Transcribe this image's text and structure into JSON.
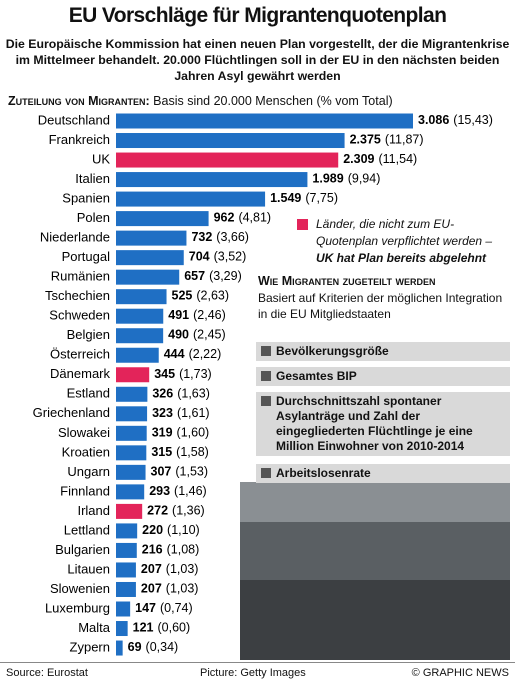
{
  "header": {
    "title": "EU Vorschläge für Migrantenquotenplan",
    "subtitle": "Die Europäische Kommission hat einen neuen Plan vorgestellt, der die Migrantenkrise im Mittelmeer behandelt. 20.000 Flüchtlingen soll in der EU in den nächsten beiden Jahren Asyl gewährt werden"
  },
  "chart_data": {
    "type": "bar",
    "orientation": "horizontal",
    "subheading_bold": "Zuteilung von Migranten:",
    "subheading": "Basis sind 20.000 Menschen (% vom Total)",
    "categories": [
      "Deutschland",
      "Frankreich",
      "UK",
      "Italien",
      "Spanien",
      "Polen",
      "Niederlande",
      "Portugal",
      "Rumänien",
      "Tschechien",
      "Schweden",
      "Belgien",
      "Österreich",
      "Dänemark",
      "Estland",
      "Griechenland",
      "Slowakei",
      "Kroatien",
      "Ungarn",
      "Finnland",
      "Irland",
      "Lettland",
      "Bulgarien",
      "Litauen",
      "Slowenien",
      "Luxemburg",
      "Malta",
      "Zypern"
    ],
    "values": [
      3086,
      2375,
      2309,
      1989,
      1549,
      962,
      732,
      704,
      657,
      525,
      491,
      490,
      444,
      345,
      326,
      323,
      319,
      315,
      307,
      293,
      272,
      220,
      216,
      207,
      207,
      147,
      121,
      69
    ],
    "value_labels": [
      "3.086",
      "2.375",
      "2.309",
      "1.989",
      "1.549",
      "962",
      "732",
      "704",
      "657",
      "525",
      "491",
      "490",
      "444",
      "345",
      "326",
      "323",
      "319",
      "315",
      "307",
      "293",
      "272",
      "220",
      "216",
      "207",
      "207",
      "147",
      "121",
      "69"
    ],
    "share_labels": [
      "(15,43)",
      "(11,87)",
      "(11,54)",
      "(9,94)",
      "(7,75)",
      "(4,81)",
      "(3,66)",
      "(3,52)",
      "(3,29)",
      "(2,63)",
      "(2,46)",
      "(2,45)",
      "(2,22)",
      "(1,73)",
      "(1,63)",
      "(1,61)",
      "(1,60)",
      "(1,58)",
      "(1,53)",
      "(1,46)",
      "(1,36)",
      "(1,10)",
      "(1,08)",
      "(1,03)",
      "(1,03)",
      "(0,74)",
      "(0,60)",
      "(0,34)"
    ],
    "colors": [
      "#1f6fc4",
      "#1f6fc4",
      "#e3245a",
      "#1f6fc4",
      "#1f6fc4",
      "#1f6fc4",
      "#1f6fc4",
      "#1f6fc4",
      "#1f6fc4",
      "#1f6fc4",
      "#1f6fc4",
      "#1f6fc4",
      "#1f6fc4",
      "#e3245a",
      "#1f6fc4",
      "#1f6fc4",
      "#1f6fc4",
      "#1f6fc4",
      "#1f6fc4",
      "#1f6fc4",
      "#e3245a",
      "#1f6fc4",
      "#1f6fc4",
      "#1f6fc4",
      "#1f6fc4",
      "#1f6fc4",
      "#1f6fc4",
      "#1f6fc4"
    ],
    "legend_note": "Länder, die nicht zum EU-Quotenplan verpflichtet werden – ",
    "legend_note_bold": "UK hat Plan bereits abgelehnt"
  },
  "criteria": {
    "title": "Wie Migranten zugeteilt werden",
    "intro": "Basiert auf Kriterien der möglichen Integration in die EU Mitgliedstaaten",
    "items": [
      "Bevölkerungsgröße",
      "Gesamtes BIP",
      "Durchschnittszahl spontaner Asylanträge und Zahl der eingegliederten Flüchtlinge je eine Million Einwohner von 2010-2014",
      "Arbeitslosenrate"
    ]
  },
  "footer": {
    "source": "Source: Eurostat",
    "picture": "Picture: Getty Images",
    "credit": "© GRAPHIC NEWS"
  }
}
